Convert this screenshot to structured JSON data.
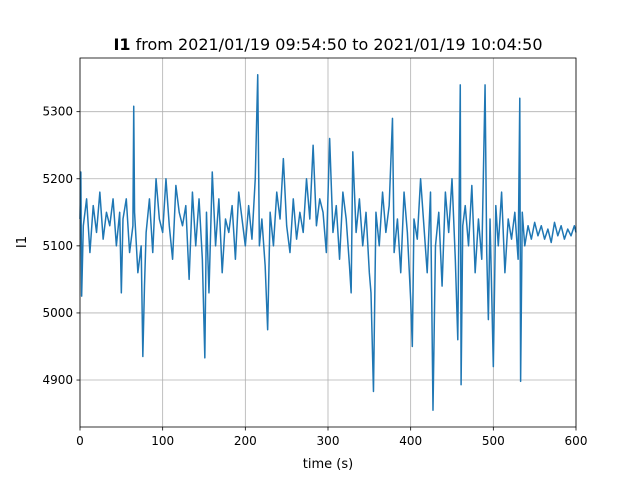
{
  "chart_data": {
    "type": "line",
    "title": [
      "I1",
      "from 2021/01/19 09:54:50 to 2021/01/19 10:04:50"
    ],
    "xlabel": "time (s)",
    "ylabel": "I1",
    "color": "#1f77b4",
    "grid": true,
    "xlim": [
      0,
      600
    ],
    "xticks": [
      0,
      100,
      200,
      300,
      400,
      500,
      600
    ],
    "ylim": [
      4830,
      5380
    ],
    "yticks": [
      4900,
      5000,
      5100,
      5200,
      5300
    ],
    "x": [
      0,
      1,
      2,
      4,
      8,
      12,
      16,
      20,
      24,
      28,
      32,
      36,
      40,
      44,
      48,
      50,
      52,
      56,
      60,
      64,
      65,
      66,
      70,
      74,
      76,
      78,
      80,
      84,
      88,
      92,
      96,
      100,
      104,
      108,
      112,
      116,
      120,
      124,
      128,
      132,
      136,
      140,
      144,
      148,
      151,
      153,
      156,
      160,
      164,
      168,
      172,
      176,
      180,
      184,
      188,
      192,
      196,
      200,
      204,
      208,
      212,
      215,
      217,
      220,
      224,
      227,
      230,
      234,
      238,
      242,
      246,
      250,
      254,
      258,
      262,
      266,
      270,
      274,
      278,
      282,
      286,
      290,
      294,
      298,
      302,
      306,
      310,
      314,
      318,
      322,
      326,
      328,
      330,
      334,
      338,
      342,
      346,
      350,
      352,
      355,
      358,
      362,
      366,
      370,
      374,
      378,
      380,
      384,
      388,
      392,
      396,
      400,
      402,
      404,
      408,
      412,
      416,
      420,
      424,
      427,
      430,
      434,
      438,
      442,
      446,
      450,
      454,
      457,
      460,
      461,
      463,
      466,
      470,
      474,
      478,
      482,
      486,
      490,
      492,
      494,
      496,
      500,
      503,
      506,
      510,
      514,
      518,
      522,
      526,
      530,
      532,
      533,
      535,
      538,
      542,
      546,
      550,
      554,
      558,
      562,
      566,
      570,
      574,
      578,
      582,
      586,
      590,
      594,
      598,
      600
    ],
    "values": [
      5140,
      5210,
      5025,
      5130,
      5170,
      5090,
      5160,
      5120,
      5180,
      5110,
      5150,
      5130,
      5170,
      5100,
      5150,
      5030,
      5140,
      5170,
      5090,
      5130,
      5308,
      5150,
      5060,
      5100,
      4935,
      5040,
      5120,
      5170,
      5090,
      5200,
      5140,
      5120,
      5200,
      5130,
      5080,
      5190,
      5150,
      5130,
      5160,
      5050,
      5180,
      5100,
      5170,
      5080,
      4933,
      5150,
      5030,
      5210,
      5100,
      5170,
      5060,
      5140,
      5120,
      5160,
      5080,
      5180,
      5140,
      5100,
      5160,
      5110,
      5200,
      5355,
      5100,
      5140,
      5070,
      4975,
      5150,
      5100,
      5180,
      5140,
      5230,
      5130,
      5090,
      5170,
      5110,
      5150,
      5120,
      5200,
      5140,
      5250,
      5130,
      5170,
      5150,
      5090,
      5260,
      5120,
      5160,
      5080,
      5180,
      5140,
      5070,
      5030,
      5240,
      5120,
      5170,
      5100,
      5150,
      5060,
      5030,
      4883,
      5150,
      5100,
      5180,
      5120,
      5160,
      5290,
      5090,
      5140,
      5060,
      5180,
      5120,
      5020,
      4950,
      5140,
      5110,
      5200,
      5130,
      5060,
      5180,
      4855,
      5100,
      5150,
      5040,
      5180,
      5120,
      5200,
      5080,
      4960,
      5340,
      4893,
      5130,
      5160,
      5100,
      5190,
      5060,
      5140,
      5080,
      5340,
      5090,
      4990,
      5140,
      4920,
      5160,
      5100,
      5180,
      5060,
      5140,
      5110,
      5150,
      5080,
      5320,
      4898,
      5150,
      5100,
      5130,
      5110,
      5135,
      5115,
      5130,
      5110,
      5125,
      5105,
      5135,
      5115,
      5130,
      5110,
      5125,
      5115,
      5130,
      5120
    ]
  }
}
